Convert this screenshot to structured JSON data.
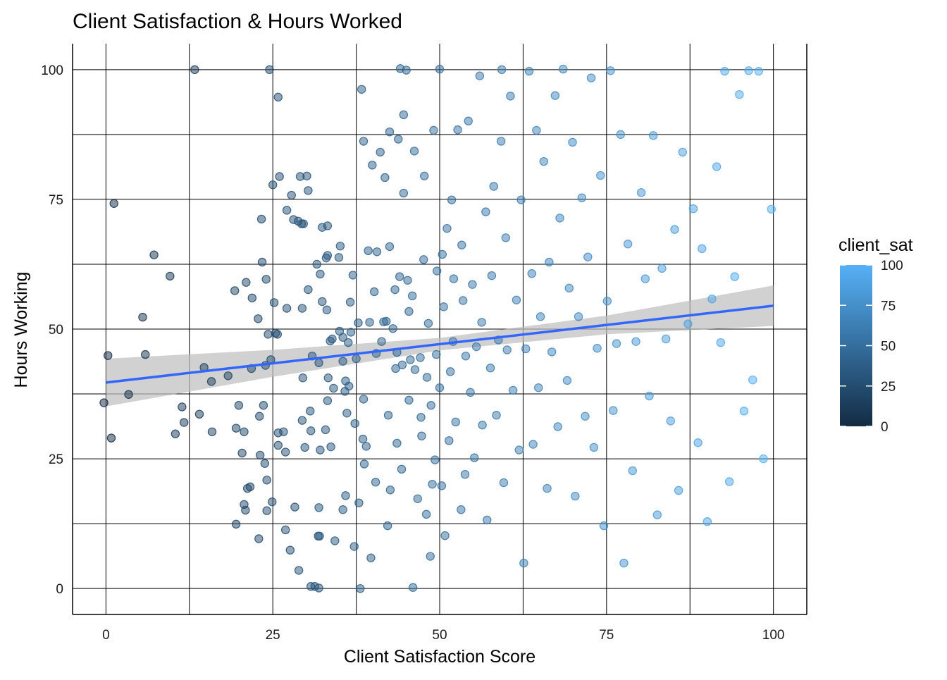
{
  "chart_data": {
    "type": "scatter",
    "title": "Client Satisfaction & Hours Worked",
    "xlabel": "Client Satisfaction Score",
    "ylabel": "Hours Working",
    "xlim": [
      -5,
      105
    ],
    "ylim": [
      -5,
      105
    ],
    "x_ticks": [
      0,
      25,
      50,
      75,
      100
    ],
    "y_ticks": [
      0,
      25,
      50,
      75,
      100
    ],
    "x_tick_labels": [
      "0",
      "25",
      "50",
      "75",
      "100"
    ],
    "y_tick_labels": [
      "0",
      "25",
      "50",
      "75",
      "100"
    ],
    "grid": true,
    "legend": {
      "title": "client_sat",
      "placement": "right",
      "type": "colorbar",
      "range": [
        0,
        100
      ],
      "ticks": [
        "0",
        "25",
        "50",
        "75",
        "100"
      ],
      "low_color": "#132B43",
      "high_color": "#56B1F7"
    },
    "trend": {
      "method": "linear",
      "color": "#3366FF",
      "band_color": "#BEBEBE",
      "points": [
        [
          0,
          39.7
        ],
        [
          25,
          43.4
        ],
        [
          50,
          47.1
        ],
        [
          75,
          50.8
        ],
        [
          100,
          54.5
        ]
      ],
      "ci_half_width": [
        [
          0,
          4.6
        ],
        [
          25,
          2.6
        ],
        [
          50,
          1.2
        ],
        [
          75,
          1.8
        ],
        [
          100,
          3.9
        ]
      ]
    },
    "points": [
      [
        -0.3,
        35.8
      ],
      [
        0.3,
        44.9
      ],
      [
        0.8,
        29
      ],
      [
        1.2,
        74.2
      ],
      [
        3.4,
        37.4
      ],
      [
        5.5,
        52.3
      ],
      [
        5.9,
        45.1
      ],
      [
        7.2,
        64.3
      ],
      [
        9.6,
        60.2
      ],
      [
        10.4,
        29.8
      ],
      [
        11.4,
        35
      ],
      [
        11.7,
        32
      ],
      [
        13.3,
        100
      ],
      [
        14,
        33.6
      ],
      [
        14.7,
        42.6
      ],
      [
        15.8,
        39.9
      ],
      [
        15.9,
        30.2
      ],
      [
        18.3,
        41
      ],
      [
        19.3,
        57.4
      ],
      [
        19.5,
        12.4
      ],
      [
        19.5,
        30.9
      ],
      [
        19.9,
        35.3
      ],
      [
        20.4,
        26.1
      ],
      [
        20.7,
        16.2
      ],
      [
        20.7,
        30.2
      ],
      [
        20.9,
        15.1
      ],
      [
        21,
        59
      ],
      [
        21.2,
        19.3
      ],
      [
        21.6,
        19.6
      ],
      [
        21.8,
        42.4
      ],
      [
        21.9,
        56
      ],
      [
        22.8,
        52
      ],
      [
        22.9,
        9.6
      ],
      [
        23,
        33.2
      ],
      [
        23.1,
        25.7
      ],
      [
        23.3,
        71.2
      ],
      [
        23.4,
        62.9
      ],
      [
        23.6,
        35.3
      ],
      [
        23.8,
        24.1
      ],
      [
        23.9,
        43
      ],
      [
        24,
        59.6
      ],
      [
        24.1,
        20.9
      ],
      [
        24.1,
        15
      ],
      [
        24.3,
        49
      ],
      [
        24.5,
        100
      ],
      [
        24.7,
        44.1
      ],
      [
        24.9,
        16.7
      ],
      [
        25,
        77.8
      ],
      [
        25.2,
        55.1
      ],
      [
        25.4,
        49.2
      ],
      [
        25.7,
        49
      ],
      [
        25.8,
        30
      ],
      [
        25.8,
        94.7
      ],
      [
        25.8,
        27.6
      ],
      [
        26,
        79.4
      ],
      [
        26.6,
        30.2
      ],
      [
        26.9,
        11.3
      ],
      [
        26.9,
        26.3
      ],
      [
        27.1,
        72.9
      ],
      [
        27.1,
        54
      ],
      [
        27.6,
        7.4
      ],
      [
        27.8,
        75.8
      ],
      [
        28.1,
        71.1
      ],
      [
        28.3,
        15.7
      ],
      [
        28.8,
        70.8
      ],
      [
        28.9,
        3.5
      ],
      [
        29.1,
        79.4
      ],
      [
        29.3,
        70.3
      ],
      [
        29.4,
        32.4
      ],
      [
        29.4,
        54
      ],
      [
        29.5,
        40.6
      ],
      [
        29.6,
        70.3
      ],
      [
        29.8,
        27.2
      ],
      [
        30.1,
        79.5
      ],
      [
        30.3,
        76.7
      ],
      [
        30.3,
        57.6
      ],
      [
        30.6,
        34.2
      ],
      [
        30.7,
        30.4
      ],
      [
        30.7,
        0.4
      ],
      [
        30.9,
        44.8
      ],
      [
        31.3,
        0.4
      ],
      [
        31.6,
        62.5
      ],
      [
        31.8,
        10.1
      ],
      [
        31.9,
        0.1
      ],
      [
        31.9,
        15.6
      ],
      [
        31.9,
        43.5
      ],
      [
        32,
        10.1
      ],
      [
        32.1,
        60.6
      ],
      [
        32.1,
        26.7
      ],
      [
        32.4,
        69.6
      ],
      [
        32.4,
        55.3
      ],
      [
        32.9,
        30.6
      ],
      [
        33,
        63.7
      ],
      [
        33.1,
        53.7
      ],
      [
        33.2,
        36.2
      ],
      [
        33.2,
        69.9
      ],
      [
        33.2,
        64.2
      ],
      [
        33.3,
        40.6
      ],
      [
        33.6,
        47.7
      ],
      [
        33.7,
        27.3
      ],
      [
        33.9,
        48.1
      ],
      [
        34.1,
        38.6
      ],
      [
        34.3,
        9.2
      ],
      [
        34.9,
        63.8
      ],
      [
        35,
        49.6
      ],
      [
        35.1,
        66
      ],
      [
        35.5,
        15.2
      ],
      [
        35.5,
        48.4
      ],
      [
        35.5,
        43.8
      ],
      [
        35.8,
        38
      ],
      [
        35.9,
        17.9
      ],
      [
        35.9,
        40
      ],
      [
        36.1,
        33.8
      ],
      [
        36.3,
        47.4
      ],
      [
        36.4,
        39
      ],
      [
        36.6,
        55.2
      ],
      [
        36.7,
        49.4
      ],
      [
        37,
        60.4
      ],
      [
        37.2,
        8.1
      ],
      [
        37.3,
        31.8
      ],
      [
        37.5,
        44.3
      ],
      [
        37.8,
        51.2
      ],
      [
        37.9,
        16.5
      ],
      [
        38.1,
        0
      ],
      [
        38.3,
        96.2
      ],
      [
        38.5,
        28.8
      ],
      [
        38.6,
        86.2
      ],
      [
        38.6,
        36.5
      ],
      [
        38.7,
        24
      ],
      [
        39,
        27.4
      ],
      [
        39.3,
        65.1
      ],
      [
        39.5,
        51.3
      ],
      [
        39.7,
        5.9
      ],
      [
        39.9,
        81.6
      ],
      [
        40.2,
        57.2
      ],
      [
        40.4,
        20.5
      ],
      [
        40.5,
        45.3
      ],
      [
        40.6,
        64.9
      ],
      [
        41.1,
        84.1
      ],
      [
        41.3,
        47.6
      ],
      [
        41.6,
        51.4
      ],
      [
        41.8,
        79.2
      ],
      [
        42,
        51.5
      ],
      [
        42.2,
        12.1
      ],
      [
        42.3,
        33.4
      ],
      [
        42.5,
        65.9
      ],
      [
        42.5,
        88
      ],
      [
        42.6,
        19
      ],
      [
        43,
        50.1
      ],
      [
        43.3,
        57.6
      ],
      [
        43.4,
        42.4
      ],
      [
        43.6,
        28
      ],
      [
        43.6,
        45.5
      ],
      [
        43.8,
        86.6
      ],
      [
        44,
        60.1
      ],
      [
        44.1,
        100.2
      ],
      [
        44.3,
        23
      ],
      [
        44.4,
        43.1
      ],
      [
        44.6,
        91.3
      ],
      [
        44.6,
        76.2
      ],
      [
        45,
        99.9
      ],
      [
        45.2,
        59.4
      ],
      [
        45.4,
        36.3
      ],
      [
        45.4,
        53.4
      ],
      [
        45.6,
        44.1
      ],
      [
        45.9,
        56.4
      ],
      [
        46,
        0.2
      ],
      [
        46.2,
        84.3
      ],
      [
        46.3,
        42.2
      ],
      [
        46.7,
        17.3
      ],
      [
        47.1,
        44.5
      ],
      [
        47.2,
        33
      ],
      [
        47.3,
        29.4
      ],
      [
        47.6,
        63.4
      ],
      [
        47.7,
        79.5
      ],
      [
        48,
        14.3
      ],
      [
        48.1,
        40.7
      ],
      [
        48.3,
        51.1
      ],
      [
        48.6,
        6.2
      ],
      [
        48.7,
        35.3
      ],
      [
        48.9,
        20.1
      ],
      [
        49.1,
        88.3
      ],
      [
        49.3,
        24.8
      ],
      [
        49.5,
        45.1
      ],
      [
        49.6,
        61.2
      ],
      [
        50,
        100.1
      ],
      [
        50,
        38.7
      ],
      [
        50.3,
        19.8
      ],
      [
        50.4,
        64.4
      ],
      [
        50.6,
        54.3
      ],
      [
        50.8,
        10.2
      ],
      [
        51.1,
        69.4
      ],
      [
        51.4,
        28.5
      ],
      [
        51.6,
        41.8
      ],
      [
        51.8,
        74.9
      ],
      [
        52,
        47.6
      ],
      [
        52.1,
        59.7
      ],
      [
        52.4,
        32.1
      ],
      [
        52.7,
        88.4
      ],
      [
        53.2,
        15.2
      ],
      [
        53.3,
        66.2
      ],
      [
        53.5,
        55.5
      ],
      [
        53.8,
        22
      ],
      [
        53.9,
        44.8
      ],
      [
        54.3,
        90.1
      ],
      [
        54.6,
        37.8
      ],
      [
        54.9,
        58.6
      ],
      [
        55.2,
        25.2
      ],
      [
        55.5,
        46.6
      ],
      [
        56,
        98.8
      ],
      [
        56.3,
        51.3
      ],
      [
        56.4,
        31.5
      ],
      [
        56.9,
        72.6
      ],
      [
        57.1,
        13.2
      ],
      [
        57.6,
        42.5
      ],
      [
        57.8,
        60.3
      ],
      [
        58.1,
        77.5
      ],
      [
        58.5,
        33.4
      ],
      [
        58.8,
        47.9
      ],
      [
        59.2,
        86.2
      ],
      [
        59.3,
        100
      ],
      [
        59.6,
        20.4
      ],
      [
        59.9,
        67.6
      ],
      [
        60.1,
        46
      ],
      [
        60.6,
        94.9
      ],
      [
        61,
        38.2
      ],
      [
        61.5,
        55.6
      ],
      [
        61.9,
        26.7
      ],
      [
        62.2,
        74.9
      ],
      [
        62.6,
        4.9
      ],
      [
        62.9,
        46.2
      ],
      [
        63.4,
        99.7
      ],
      [
        63.8,
        60.7
      ],
      [
        64,
        27.8
      ],
      [
        64.5,
        88.3
      ],
      [
        64.8,
        38.7
      ],
      [
        65.1,
        52.4
      ],
      [
        65.6,
        82.3
      ],
      [
        66.1,
        19.3
      ],
      [
        66.4,
        62.9
      ],
      [
        66.8,
        45.6
      ],
      [
        67.3,
        95
      ],
      [
        67.7,
        31.2
      ],
      [
        68,
        71.4
      ],
      [
        68.5,
        100.1
      ],
      [
        69.1,
        40.1
      ],
      [
        69.4,
        57.9
      ],
      [
        69.9,
        86
      ],
      [
        70.3,
        17.8
      ],
      [
        70.8,
        52.4
      ],
      [
        71.3,
        75.3
      ],
      [
        71.8,
        33.2
      ],
      [
        72.2,
        63.9
      ],
      [
        72.7,
        98.4
      ],
      [
        73.1,
        27.2
      ],
      [
        73.6,
        46.3
      ],
      [
        74.1,
        79.6
      ],
      [
        74.6,
        12.1
      ],
      [
        75.1,
        55.4
      ],
      [
        75.6,
        99.8
      ],
      [
        76,
        34.3
      ],
      [
        76.5,
        47.2
      ],
      [
        77.1,
        87.5
      ],
      [
        77.6,
        4.9
      ],
      [
        78.2,
        66.4
      ],
      [
        78.9,
        22.7
      ],
      [
        79.4,
        47.6
      ],
      [
        80.2,
        76.3
      ],
      [
        80.8,
        59.7
      ],
      [
        81.4,
        37.1
      ],
      [
        82,
        87.3
      ],
      [
        82.6,
        14.2
      ],
      [
        83.3,
        61.7
      ],
      [
        83.9,
        48.1
      ],
      [
        84.6,
        32.3
      ],
      [
        85.2,
        69.2
      ],
      [
        85.8,
        18.9
      ],
      [
        86.4,
        84.1
      ],
      [
        87.2,
        51
      ],
      [
        88,
        73.2
      ],
      [
        88.7,
        28.1
      ],
      [
        89.3,
        65.5
      ],
      [
        90.1,
        12.9
      ],
      [
        90.8,
        55.8
      ],
      [
        91.5,
        81.3
      ],
      [
        92.1,
        47.4
      ],
      [
        92.7,
        99.7
      ],
      [
        93.4,
        20.6
      ],
      [
        94.2,
        60.1
      ],
      [
        94.9,
        95.2
      ],
      [
        95.6,
        34.2
      ],
      [
        96.3,
        99.8
      ],
      [
        96.9,
        40.2
      ],
      [
        97.8,
        99.7
      ],
      [
        98.5,
        25
      ],
      [
        99.7,
        73.1
      ]
    ]
  }
}
